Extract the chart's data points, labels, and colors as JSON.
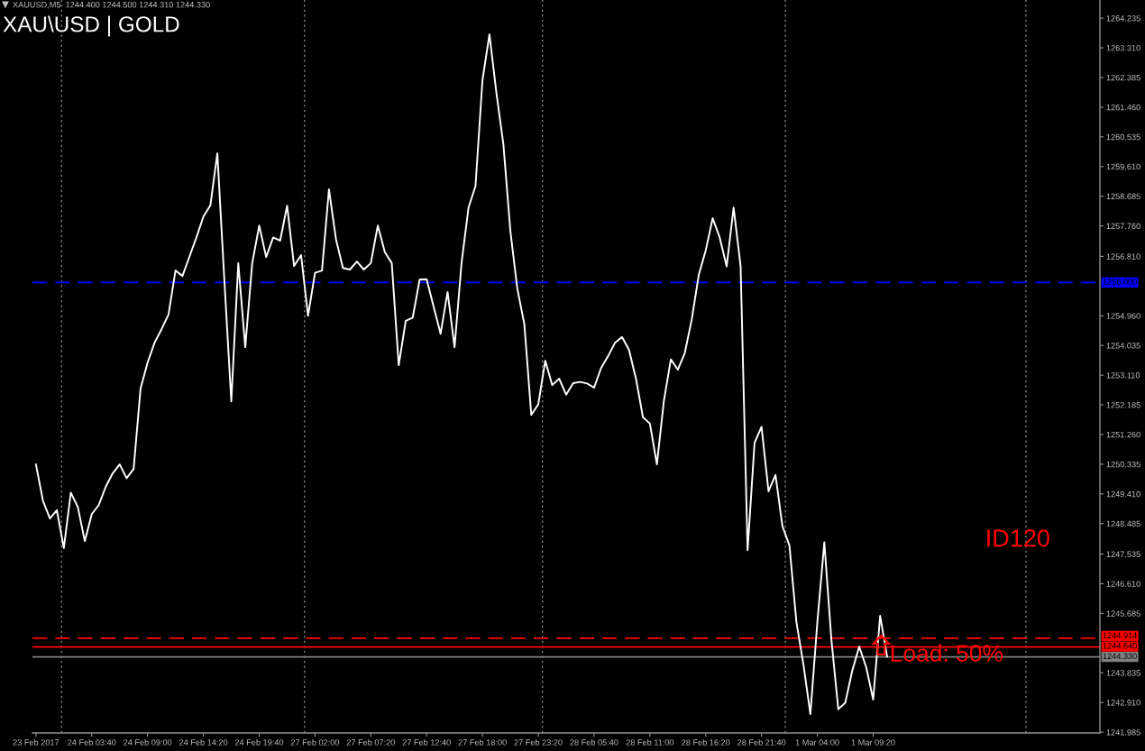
{
  "chart_data": {
    "type": "line",
    "title": "XAU\\USD | GOLD",
    "subtitle": "XAUUSD,M5  1244.400 1244.500 1244.310 1244.330",
    "annotations": [
      "ID120",
      "Load: 50%"
    ],
    "categories": [
      "23 Feb 2017",
      null,
      null,
      null,
      null,
      null,
      null,
      null,
      "24 Feb 03:40",
      null,
      null,
      null,
      null,
      null,
      null,
      null,
      "24 Feb 09:00",
      null,
      null,
      null,
      null,
      null,
      null,
      null,
      "24 Feb 14:20",
      null,
      null,
      null,
      null,
      null,
      null,
      null,
      "24 Feb 19:40",
      null,
      null,
      null,
      null,
      null,
      null,
      null,
      "27 Feb 02:00",
      null,
      null,
      null,
      null,
      null,
      null,
      null,
      "27 Feb 07:20",
      null,
      null,
      null,
      null,
      null,
      null,
      null,
      "27 Feb 12:40",
      null,
      null,
      null,
      null,
      null,
      null,
      null,
      "27 Feb 18:00",
      null,
      null,
      null,
      null,
      null,
      null,
      null,
      "27 Feb 23:20",
      null,
      null,
      null,
      null,
      null,
      null,
      null,
      "28 Feb 05:40",
      null,
      null,
      null,
      null,
      null,
      null,
      null,
      "28 Feb 11:00",
      null,
      null,
      null,
      null,
      null,
      null,
      null,
      "28 Feb 16:20",
      null,
      null,
      null,
      null,
      null,
      null,
      null,
      "28 Feb 21:40",
      null,
      null,
      null,
      null,
      null,
      null,
      null,
      "1 Mar 04:00",
      null,
      null,
      null,
      null,
      null,
      null,
      null,
      "1 Mar 09:20",
      null,
      null,
      null,
      null,
      null,
      null,
      null,
      null,
      null,
      null,
      null,
      null,
      null,
      null,
      null,
      null,
      null,
      null,
      null,
      null,
      null,
      null,
      null,
      null,
      null,
      null,
      null,
      null,
      null,
      null,
      null,
      null
    ],
    "series": [
      {
        "color": "#ffffff",
        "values": [
          1250.33,
          1249.2,
          1248.64,
          1248.9,
          1247.72,
          1249.45,
          1249.0,
          1247.94,
          1248.78,
          1249.06,
          1249.63,
          1250.05,
          1250.33,
          1249.9,
          1250.19,
          1252.7,
          1253.5,
          1254.12,
          1254.54,
          1255.0,
          1256.37,
          1256.2,
          1256.8,
          1257.4,
          1258.05,
          1258.4,
          1260.02,
          1256.09,
          1252.29,
          1256.6,
          1253.98,
          1256.6,
          1257.77,
          1256.79,
          1257.4,
          1257.3,
          1258.39,
          1256.51,
          1256.85,
          1254.96,
          1256.3,
          1256.37,
          1258.9,
          1257.35,
          1256.45,
          1256.4,
          1256.65,
          1256.4,
          1256.6,
          1257.77,
          1256.95,
          1256.6,
          1253.42,
          1254.8,
          1254.9,
          1256.09,
          1256.1,
          1255.24,
          1254.4,
          1255.7,
          1253.98,
          1256.6,
          1258.33,
          1259.0,
          1262.3,
          1263.73,
          1261.9,
          1260.3,
          1257.6,
          1255.8,
          1254.7,
          1251.87,
          1252.2,
          1253.56,
          1252.8,
          1253.0,
          1252.5,
          1252.86,
          1252.9,
          1252.85,
          1252.72,
          1253.33,
          1253.7,
          1254.12,
          1254.3,
          1253.9,
          1253.0,
          1251.8,
          1251.6,
          1250.33,
          1252.3,
          1253.6,
          1253.28,
          1253.8,
          1254.85,
          1256.23,
          1257.0,
          1258.0,
          1257.4,
          1256.5,
          1258.33,
          1256.5,
          1247.66,
          1251.0,
          1251.5,
          1249.49,
          1250.0,
          1248.4,
          1247.8,
          1245.41,
          1244.1,
          1242.55,
          1245.41,
          1247.9,
          1244.9,
          1242.7,
          1242.9,
          1243.9,
          1244.65,
          1244.01,
          1243.0,
          1245.61,
          1244.33,
          null,
          null,
          null,
          null,
          null,
          null,
          null,
          null,
          null,
          null,
          null,
          null,
          null,
          null,
          null,
          null,
          null,
          null,
          null,
          null,
          null,
          null,
          null,
          null,
          null,
          null,
          null,
          null,
          null,
          null
        ]
      }
    ],
    "ylim": [
      1241.96,
      1264.8
    ],
    "yticks": [
      {
        "value": 1241.985,
        "label": "1241.985"
      },
      {
        "value": 1242.91,
        "label": "1242.910"
      },
      {
        "value": 1243.835,
        "label": "1243.835"
      },
      {
        "value": 1245.685,
        "label": "1245.685"
      },
      {
        "value": 1246.61,
        "label": "1246.610"
      },
      {
        "value": 1247.535,
        "label": "1247.535"
      },
      {
        "value": 1248.485,
        "label": "1248.485"
      },
      {
        "value": 1249.41,
        "label": "1249.410"
      },
      {
        "value": 1250.335,
        "label": "1250.335"
      },
      {
        "value": 1251.26,
        "label": "1251.260"
      },
      {
        "value": 1252.185,
        "label": "1252.185"
      },
      {
        "value": 1253.11,
        "label": "1253.110"
      },
      {
        "value": 1254.035,
        "label": "1254.035"
      },
      {
        "value": 1254.96,
        "label": "1254.960"
      },
      {
        "value": 1256.81,
        "label": "1256.810"
      },
      {
        "value": 1257.76,
        "label": "1257.760"
      },
      {
        "value": 1258.685,
        "label": "1258.685"
      },
      {
        "value": 1259.61,
        "label": "1259.610"
      },
      {
        "value": 1260.535,
        "label": "1260.535"
      },
      {
        "value": 1261.46,
        "label": "1261.460"
      },
      {
        "value": 1262.385,
        "label": "1262.385"
      },
      {
        "value": 1263.31,
        "label": "1263.310"
      },
      {
        "value": 1264.235,
        "label": "1264.235"
      }
    ],
    "ref_lines": [
      {
        "axis": "y",
        "value": 1256.0,
        "label": "1256.000",
        "color": "#0000ff",
        "line_style": "dashed"
      },
      {
        "axis": "y",
        "value": 1244.914,
        "label": "1244.914",
        "color": "#ff0000",
        "line_style": "dashed"
      },
      {
        "axis": "y",
        "value": 1244.64,
        "label": "1244.640",
        "color": "#ff0000",
        "line_style": "solid"
      },
      {
        "axis": "y",
        "value": 1244.33,
        "label": "1244.330",
        "color": "#808080",
        "line_style": "solid"
      }
    ]
  }
}
